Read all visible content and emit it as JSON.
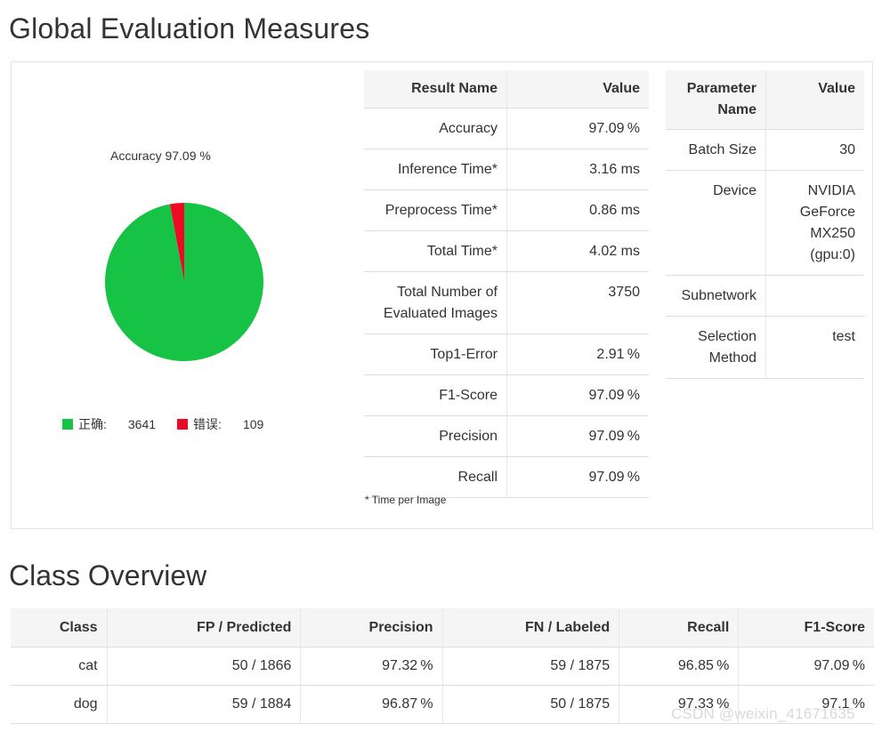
{
  "global": {
    "title": "Global Evaluation Measures",
    "pie": {
      "title": "Accuracy 97.09 %",
      "legend": [
        {
          "label": "正确:",
          "value": "3641",
          "color": "#16c344"
        },
        {
          "label": "错误:",
          "value": "109",
          "color": "#ee0a24"
        }
      ]
    },
    "result_table": {
      "headers": [
        "Result Name",
        "Value"
      ],
      "rows": [
        [
          "Accuracy",
          "97.09 %"
        ],
        [
          "Inference Time*",
          "3.16 ms"
        ],
        [
          "Preprocess Time*",
          "0.86 ms"
        ],
        [
          "Total Time*",
          "4.02 ms"
        ],
        [
          "Total Number of Evaluated Images",
          "3750"
        ],
        [
          "Top1-Error",
          "2.91 %"
        ],
        [
          "F1-Score",
          "97.09 %"
        ],
        [
          "Precision",
          "97.09 %"
        ],
        [
          "Recall",
          "97.09 %"
        ]
      ],
      "footnote": "* Time per Image"
    },
    "param_table": {
      "headers": [
        "Parameter Name",
        "Value"
      ],
      "rows": [
        [
          "Batch Size",
          "30"
        ],
        [
          "Device",
          "NVIDIA GeForce MX250 (gpu:0)"
        ],
        [
          "Subnetwork",
          ""
        ],
        [
          "Selection Method",
          "test"
        ]
      ]
    }
  },
  "class_overview": {
    "title": "Class Overview",
    "headers": [
      "Class",
      "FP / Predicted",
      "Precision",
      "FN / Labeled",
      "Recall",
      "F1-Score"
    ],
    "rows": [
      [
        "cat",
        "50 / 1866",
        "97.32 %",
        "59 / 1875",
        "96.85 %",
        "97.09 %"
      ],
      [
        "dog",
        "59 / 1884",
        "96.87 %",
        "50 / 1875",
        "97.33 %",
        "97.1 %"
      ]
    ]
  },
  "watermark": "CSDN @weixin_41671635",
  "chart_data": {
    "type": "pie",
    "title": "Accuracy 97.09 %",
    "labels": [
      "正确",
      "错误"
    ],
    "values": [
      3641,
      109
    ],
    "colors": [
      "#16c344",
      "#ee0a24"
    ],
    "legend": "bottom"
  }
}
